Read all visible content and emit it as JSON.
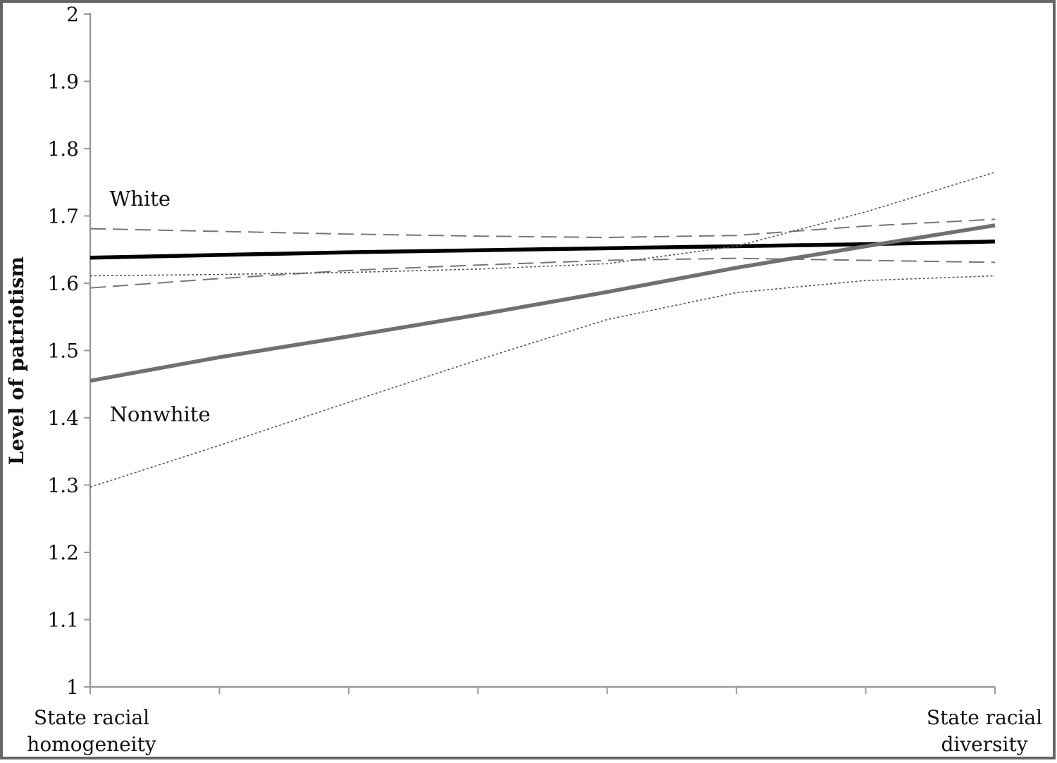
{
  "chart_data": {
    "type": "line",
    "title": "",
    "xlabel": "",
    "ylabel": "Level of patriotism",
    "ylim": [
      1,
      2
    ],
    "y_ticks": [
      "1",
      "1.1",
      "1.2",
      "1.3",
      "1.4",
      "1.5",
      "1.6",
      "1.7",
      "1.8",
      "1.9",
      "2"
    ],
    "x_range": [
      0,
      7
    ],
    "x_end_labels": [
      [
        "State racial",
        "homogeneity"
      ],
      [
        "State racial",
        "diversity"
      ]
    ],
    "grid": false,
    "legend": "none",
    "series_labels": [
      {
        "text": "White",
        "x": 0.15,
        "y": 1.715
      },
      {
        "text": "Nonwhite",
        "x": 0.15,
        "y": 1.395
      }
    ],
    "series": [
      {
        "style": "solid-thick",
        "color": "#000000",
        "values_x": [
          0,
          1,
          2,
          3,
          4,
          5,
          6,
          7
        ],
        "values": [
          1.638,
          1.642,
          1.646,
          1.649,
          1.652,
          1.655,
          1.658,
          1.662
        ]
      },
      {
        "style": "dash",
        "color": "#777777",
        "values_x": [
          0,
          1,
          2,
          3,
          4,
          5,
          6,
          7
        ],
        "values": [
          1.681,
          1.677,
          1.673,
          1.67,
          1.668,
          1.671,
          1.685,
          1.695
        ]
      },
      {
        "style": "dash",
        "color": "#777777",
        "values_x": [
          0,
          1,
          2,
          3,
          4,
          5,
          6,
          7
        ],
        "values": [
          1.593,
          1.607,
          1.619,
          1.627,
          1.634,
          1.637,
          1.634,
          1.631
        ]
      },
      {
        "style": "solid-thick",
        "color": "#707070",
        "values_x": [
          0,
          1,
          2,
          3,
          4,
          5,
          6,
          7
        ],
        "values": [
          1.455,
          1.49,
          1.521,
          1.553,
          1.587,
          1.623,
          1.655,
          1.686
        ]
      },
      {
        "style": "dot",
        "color": "#555555",
        "values_x": [
          0,
          1,
          2,
          3,
          4,
          5,
          6,
          7
        ],
        "values": [
          1.611,
          1.613,
          1.616,
          1.621,
          1.629,
          1.655,
          1.706,
          1.765
        ]
      },
      {
        "style": "dot",
        "color": "#555555",
        "values_x": [
          0,
          1,
          2,
          3,
          4,
          5,
          6,
          7
        ],
        "values": [
          1.297,
          1.359,
          1.423,
          1.486,
          1.546,
          1.586,
          1.604,
          1.611
        ]
      }
    ]
  }
}
